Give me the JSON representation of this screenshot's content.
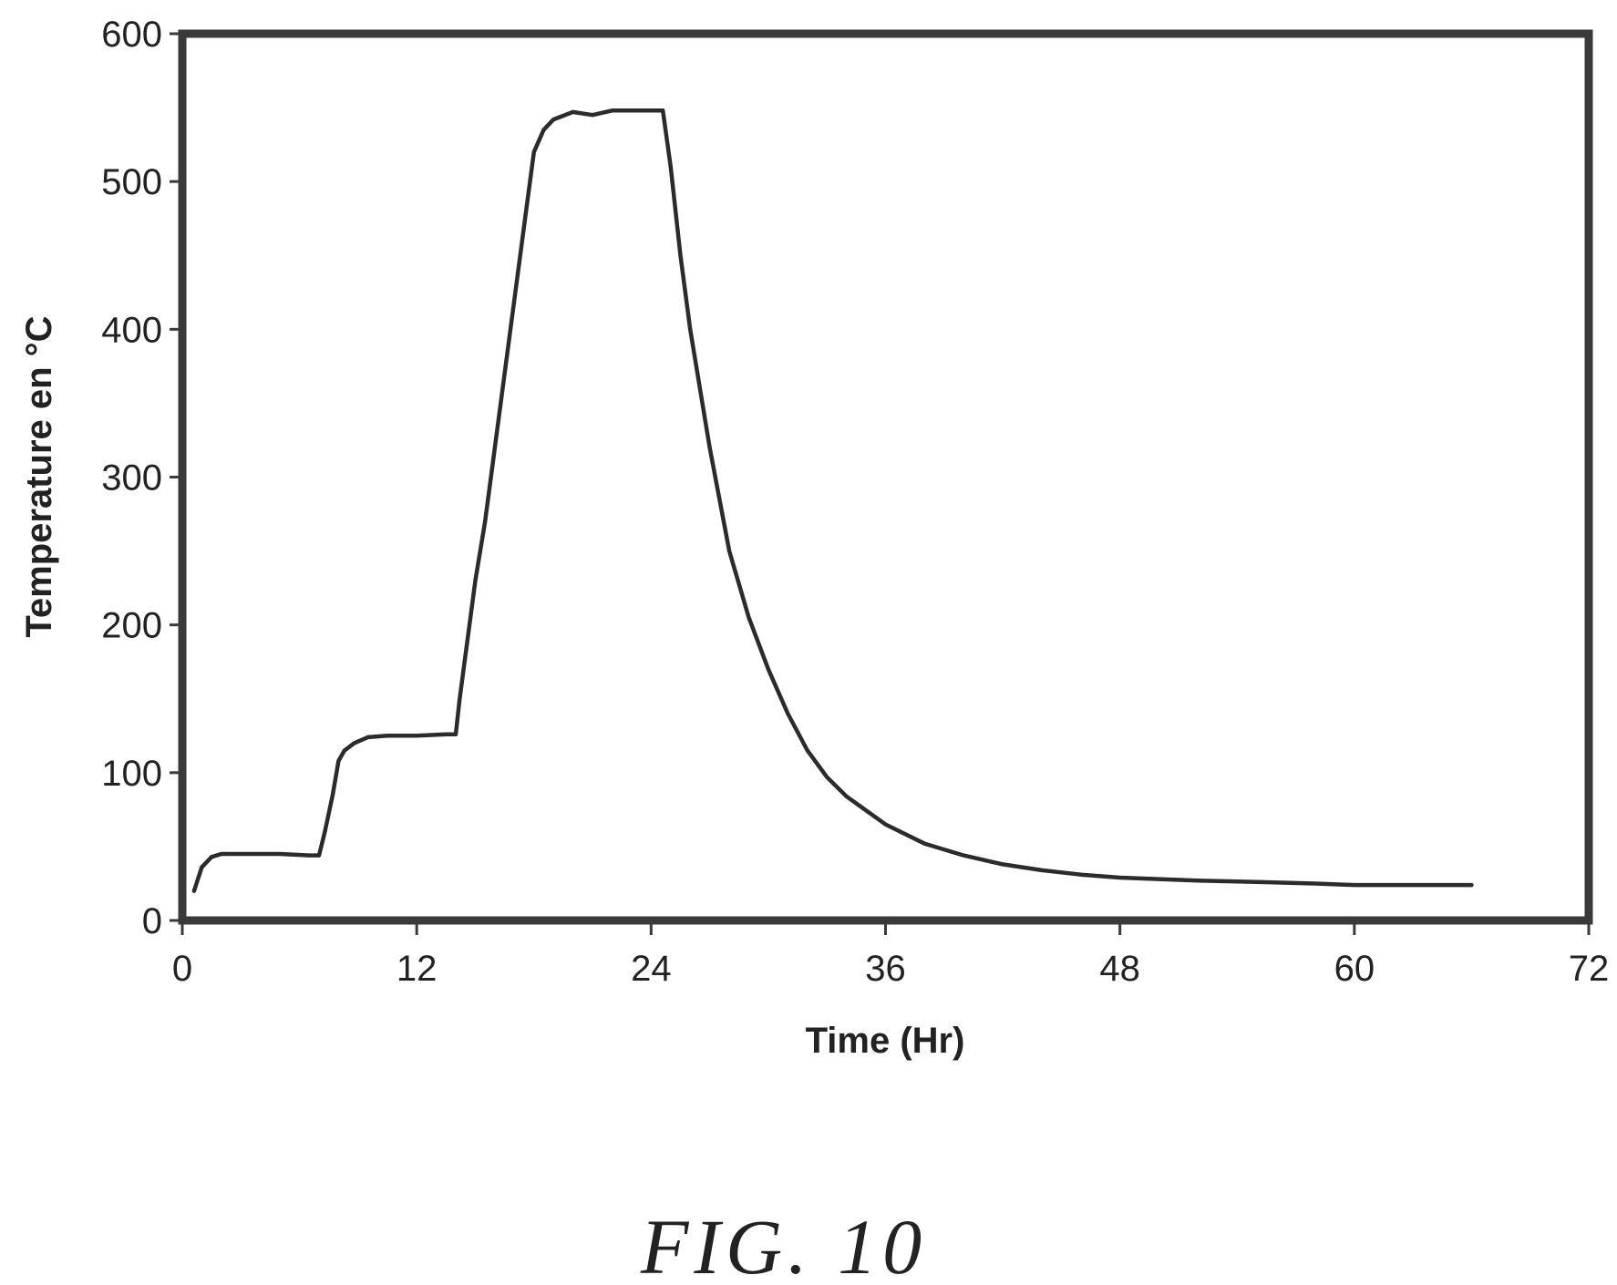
{
  "chart_data": {
    "type": "line",
    "title": "",
    "xlabel": "Time (Hr)",
    "ylabel": "Temperature en °C",
    "xlim": [
      0,
      72
    ],
    "ylim": [
      0,
      600
    ],
    "xticks": [
      0,
      12,
      24,
      36,
      48,
      60,
      72
    ],
    "yticks": [
      0,
      100,
      200,
      300,
      400,
      500,
      600
    ],
    "grid": false,
    "legend": "none",
    "colors": {
      "line": "#2b2b2b",
      "frame": "#3a3a3a"
    },
    "series": [
      {
        "x": [
          0.6,
          1.0,
          1.5,
          2,
          3,
          5,
          6.5,
          7,
          7.3,
          7.7,
          8,
          8.3,
          8.8,
          9.5,
          10.5,
          12,
          13.5,
          14,
          14.2,
          14.6,
          15,
          15.5,
          16,
          16.5,
          17,
          17.5,
          18,
          18.5,
          19,
          20,
          21,
          22,
          23,
          24,
          24.6,
          25,
          25.5,
          26,
          26.5,
          27,
          28,
          29,
          30,
          31,
          32,
          33,
          34,
          36,
          38,
          40,
          42,
          44,
          46,
          48,
          50,
          52,
          55,
          58,
          60,
          62,
          64,
          66
        ],
        "y": [
          20,
          36,
          43,
          45,
          45,
          45,
          44,
          44,
          60,
          85,
          108,
          115,
          120,
          124,
          125,
          125,
          126,
          126,
          150,
          190,
          230,
          270,
          320,
          370,
          420,
          470,
          520,
          535,
          542,
          547,
          545,
          548,
          548,
          548,
          548,
          510,
          450,
          400,
          360,
          320,
          250,
          205,
          170,
          140,
          115,
          97,
          84,
          65,
          52,
          44,
          38,
          34,
          31,
          29,
          28,
          27,
          26,
          25,
          24,
          24,
          24,
          24
        ]
      }
    ]
  },
  "figure": {
    "caption": "FIG.  10"
  }
}
